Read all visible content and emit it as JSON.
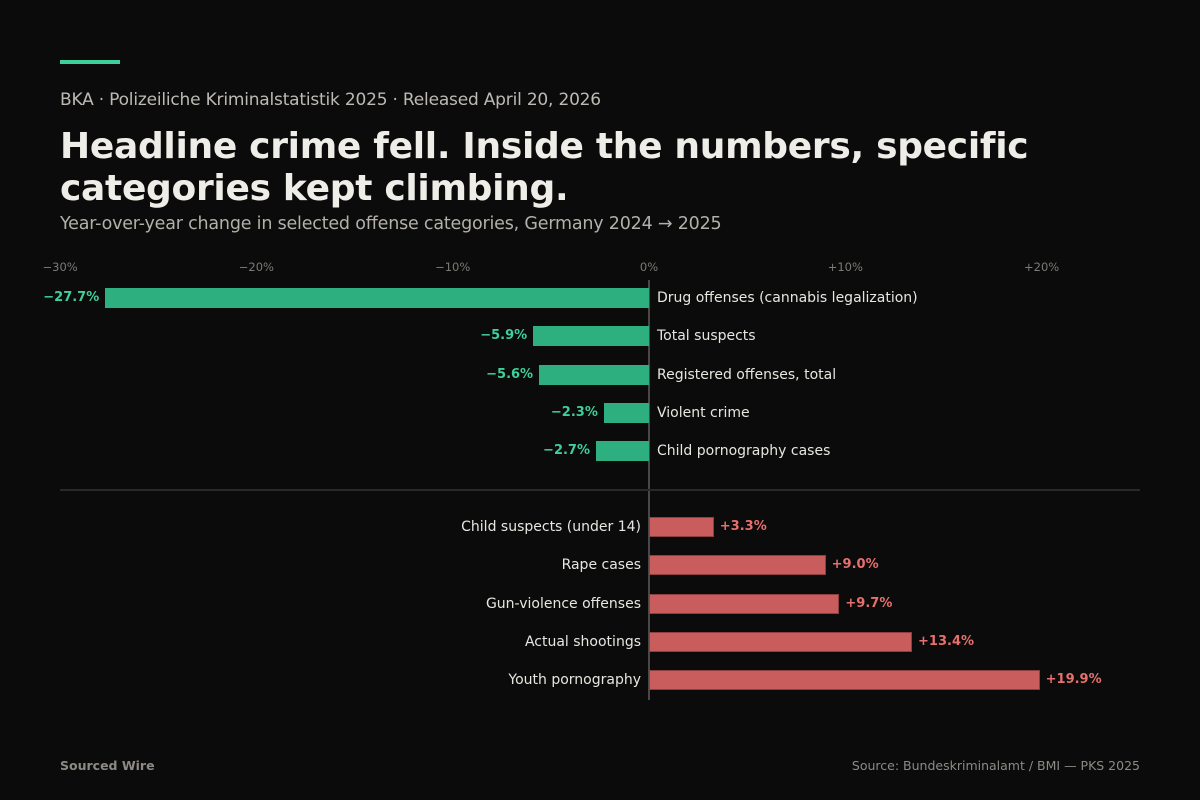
{
  "header": {
    "kicker": "BKA · Polizeiliche Kriminalstatistik 2025 · Released April 20, 2026",
    "title": "Headline crime fell. Inside the numbers, specific categories kept climbing.",
    "subtitle": "Year-over-year change in selected offense categories, Germany 2024 → 2025"
  },
  "colors": {
    "accent": "#3ecf9b",
    "decrease": "#2daf80",
    "increase": "#c95c5c",
    "background": "#0b0b0b"
  },
  "chart_data": {
    "type": "bar",
    "orientation": "horizontal",
    "title": "Headline crime fell. Inside the numbers, specific categories kept climbing.",
    "subtitle": "Year-over-year change in selected offense categories, Germany 2024 → 2025",
    "xlabel": "",
    "ylabel": "",
    "xlim": [
      -30,
      25
    ],
    "x_ticks": [
      -30,
      -20,
      -10,
      0,
      10,
      20
    ],
    "x_tick_labels": [
      "−30%",
      "−20%",
      "−10%",
      "0%",
      "+10%",
      "+20%"
    ],
    "grid": false,
    "legend": null,
    "groups": [
      {
        "name": "decreases",
        "categories": [
          "Drug offenses (cannabis legalization)",
          "Total suspects",
          "Registered offenses, total",
          "Violent crime",
          "Child pornography cases"
        ],
        "values": [
          -27.7,
          -5.9,
          -5.6,
          -2.3,
          -2.7
        ],
        "labels": [
          "−27.7%",
          "−5.9%",
          "−5.6%",
          "−2.3%",
          "−2.7%"
        ]
      },
      {
        "name": "increases",
        "categories": [
          "Child suspects (under 14)",
          "Rape cases",
          "Gun-violence offenses",
          "Actual shootings",
          "Youth pornography"
        ],
        "values": [
          3.3,
          9.0,
          9.7,
          13.4,
          19.9
        ],
        "labels": [
          "+3.3%",
          "+9.0%",
          "+9.7%",
          "+13.4%",
          "+19.9%"
        ]
      }
    ]
  },
  "footer": {
    "brand": "Sourced Wire",
    "source": "Source: Bundeskriminalamt / BMI — PKS 2025"
  }
}
